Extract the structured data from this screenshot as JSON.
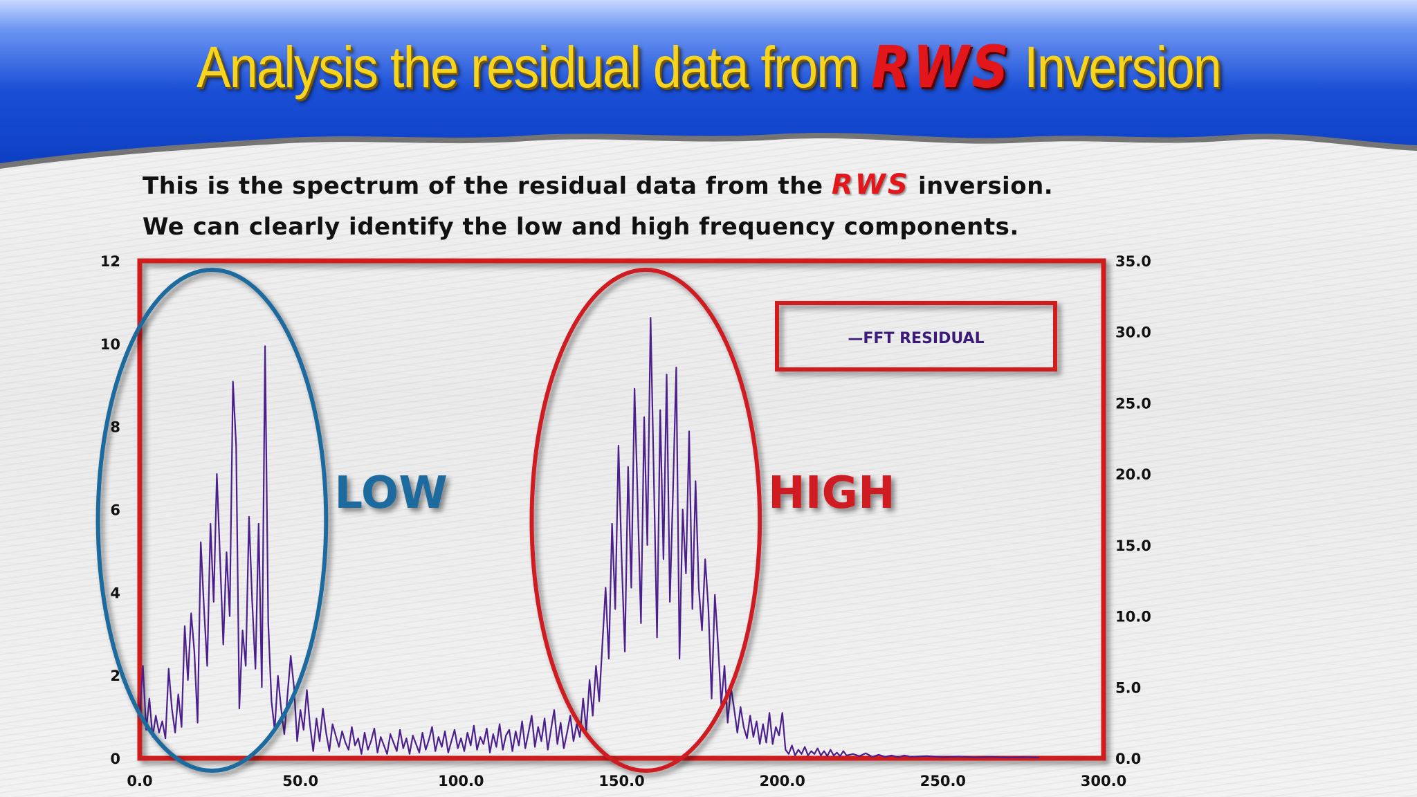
{
  "slide": {
    "title_before": "Analysis the residual data from",
    "title_brand": "RWS",
    "title_after": "Inversion",
    "line1_before": "This is the spectrum of the residual data from the",
    "line1_brand": "RWS",
    "line1_after": "inversion.",
    "line2": "We can clearly identify the low and high frequency components."
  },
  "colors": {
    "banner_blue": "#1a4fd6",
    "title_yellow": "#f7d51f",
    "brand_red": "#e3161b",
    "frame_red": "#d01c1f",
    "series_purple": "#4b1f8c",
    "low_blue": "#1f6a9e",
    "high_red": "#cf1e22"
  },
  "chart_data": {
    "type": "line",
    "legend": [
      "—FFT RESIDUAL"
    ],
    "legend_position": "top-right",
    "grid": false,
    "x_ticks": [
      "0.0",
      "50.0",
      "100.0",
      "150.0",
      "200.0",
      "250.0",
      "300.0"
    ],
    "y_left_ticks": [
      "0",
      "2",
      "4",
      "6",
      "8",
      "10",
      "12"
    ],
    "y_right_ticks": [
      "0.0",
      "5.0",
      "10.0",
      "15.0",
      "20.0",
      "25.0",
      "30.0",
      "35.0"
    ],
    "xlim": [
      0,
      300
    ],
    "ylim": [
      0,
      35
    ],
    "annotations": [
      {
        "text": "LOW",
        "x_range": [
          -13,
          58
        ],
        "color": "#1f6a9e"
      },
      {
        "text": "HIGH",
        "x_range": [
          122,
          193
        ],
        "color": "#cf1e22"
      }
    ],
    "series": [
      {
        "name": "FFT RESIDUAL",
        "points": [
          [
            0,
            3
          ],
          [
            1,
            6.5
          ],
          [
            2,
            2
          ],
          [
            3,
            4.2
          ],
          [
            4,
            1.5
          ],
          [
            5,
            3
          ],
          [
            6,
            1.8
          ],
          [
            7,
            2.6
          ],
          [
            8,
            1.4
          ],
          [
            9,
            6.3
          ],
          [
            10,
            3.5
          ],
          [
            11,
            1.8
          ],
          [
            12,
            4.5
          ],
          [
            13,
            2.2
          ],
          [
            14,
            9.3
          ],
          [
            15,
            5.5
          ],
          [
            16,
            10.2
          ],
          [
            17,
            7.5
          ],
          [
            18,
            2.5
          ],
          [
            19,
            15.2
          ],
          [
            20,
            10.5
          ],
          [
            21,
            6.5
          ],
          [
            22,
            16.5
          ],
          [
            23,
            11
          ],
          [
            24,
            20
          ],
          [
            25,
            14
          ],
          [
            26,
            8
          ],
          [
            27,
            14.5
          ],
          [
            28,
            10
          ],
          [
            29,
            26.5
          ],
          [
            30,
            22
          ],
          [
            31,
            3.5
          ],
          [
            32,
            9
          ],
          [
            33,
            6.5
          ],
          [
            34,
            17
          ],
          [
            35,
            11
          ],
          [
            36,
            6.3
          ],
          [
            37,
            16.5
          ],
          [
            38,
            5
          ],
          [
            39,
            29
          ],
          [
            40,
            9.5
          ],
          [
            41,
            4
          ],
          [
            42,
            2
          ],
          [
            43,
            5.8
          ],
          [
            44,
            3.5
          ],
          [
            45,
            1.7
          ],
          [
            46,
            4.5
          ],
          [
            47,
            7.2
          ],
          [
            48,
            5
          ],
          [
            49,
            1.2
          ],
          [
            50,
            3.4
          ],
          [
            51,
            2
          ],
          [
            52,
            4.8
          ],
          [
            53,
            2.3
          ],
          [
            54,
            0.5
          ],
          [
            55,
            2.8
          ],
          [
            56,
            1.2
          ],
          [
            57,
            3.5
          ],
          [
            58,
            1.8
          ],
          [
            59,
            0.5
          ],
          [
            60,
            2.4
          ],
          [
            61,
            1.6
          ],
          [
            62,
            0.8
          ],
          [
            63,
            1.9
          ],
          [
            64,
            1.1
          ],
          [
            65,
            0.6
          ],
          [
            66,
            2.2
          ],
          [
            67,
            0.9
          ],
          [
            68,
            1.4
          ],
          [
            69,
            0.3
          ],
          [
            70,
            1.8
          ],
          [
            71,
            0.6
          ],
          [
            72,
            1.2
          ],
          [
            73,
            2.1
          ],
          [
            74,
            0.4
          ],
          [
            75,
            1.5
          ],
          [
            76,
            0.9
          ],
          [
            77,
            0.3
          ],
          [
            78,
            1.7
          ],
          [
            79,
            1.1
          ],
          [
            80,
            0.5
          ],
          [
            81,
            2.0
          ],
          [
            82,
            0.7
          ],
          [
            83,
            1.4
          ],
          [
            84,
            0.3
          ],
          [
            85,
            1.6
          ],
          [
            86,
            1.0
          ],
          [
            87,
            0.4
          ],
          [
            88,
            1.8
          ],
          [
            89,
            0.6
          ],
          [
            90,
            1.3
          ],
          [
            91,
            2.2
          ],
          [
            92,
            0.5
          ],
          [
            93,
            1.5
          ],
          [
            94,
            0.8
          ],
          [
            95,
            1.9
          ],
          [
            96,
            0.4
          ],
          [
            97,
            1.2
          ],
          [
            98,
            2.0
          ],
          [
            99,
            0.7
          ],
          [
            100,
            1.4
          ],
          [
            101,
            0.5
          ],
          [
            102,
            1.8
          ],
          [
            103,
            0.9
          ],
          [
            104,
            2.3
          ],
          [
            105,
            0.6
          ],
          [
            106,
            1.5
          ],
          [
            107,
            1.0
          ],
          [
            108,
            2.1
          ],
          [
            109,
            0.4
          ],
          [
            110,
            1.7
          ],
          [
            111,
            0.8
          ],
          [
            112,
            2.4
          ],
          [
            113,
            0.6
          ],
          [
            114,
            1.6
          ],
          [
            115,
            2.0
          ],
          [
            116,
            0.5
          ],
          [
            117,
            1.9
          ],
          [
            118,
            0.9
          ],
          [
            119,
            2.6
          ],
          [
            120,
            0.7
          ],
          [
            121,
            1.8
          ],
          [
            122,
            3.0
          ],
          [
            123,
            0.8
          ],
          [
            124,
            2.2
          ],
          [
            125,
            1.2
          ],
          [
            126,
            2.8
          ],
          [
            127,
            0.6
          ],
          [
            128,
            2.0
          ],
          [
            129,
            3.4
          ],
          [
            130,
            1.0
          ],
          [
            131,
            2.5
          ],
          [
            132,
            0.7
          ],
          [
            133,
            1.8
          ],
          [
            134,
            3.0
          ],
          [
            135,
            1.2
          ],
          [
            136,
            2.4
          ],
          [
            137,
            1.5
          ],
          [
            138,
            4.2
          ],
          [
            139,
            2.0
          ],
          [
            140,
            5.5
          ],
          [
            141,
            3.0
          ],
          [
            142,
            6.5
          ],
          [
            143,
            4.0
          ],
          [
            144,
            8.0
          ],
          [
            145,
            12.0
          ],
          [
            146,
            7.0
          ],
          [
            147,
            16.5
          ],
          [
            148,
            10.5
          ],
          [
            149,
            22
          ],
          [
            150,
            14
          ],
          [
            151,
            7.5
          ],
          [
            152,
            20.5
          ],
          [
            153,
            12
          ],
          [
            154,
            26
          ],
          [
            155,
            18
          ],
          [
            156,
            9.5
          ],
          [
            157,
            24
          ],
          [
            158,
            15
          ],
          [
            159,
            31
          ],
          [
            160,
            20
          ],
          [
            161,
            8.5
          ],
          [
            162,
            24.5
          ],
          [
            163,
            14
          ],
          [
            164,
            27
          ],
          [
            165,
            11
          ],
          [
            166,
            19
          ],
          [
            167,
            27.5
          ],
          [
            168,
            7
          ],
          [
            169,
            17.5
          ],
          [
            170,
            13
          ],
          [
            171,
            23
          ],
          [
            172,
            10.5
          ],
          [
            173,
            19.5
          ],
          [
            174,
            12
          ],
          [
            175,
            9
          ],
          [
            176,
            14
          ],
          [
            177,
            10.5
          ],
          [
            178,
            4.2
          ],
          [
            179,
            11.5
          ],
          [
            180,
            8
          ],
          [
            181,
            3.8
          ],
          [
            182,
            6.5
          ],
          [
            183,
            2.5
          ],
          [
            184,
            5
          ],
          [
            185,
            3.5
          ],
          [
            186,
            1.8
          ],
          [
            187,
            3.6
          ],
          [
            188,
            2.2
          ],
          [
            189,
            1.4
          ],
          [
            190,
            3.0
          ],
          [
            191,
            1.5
          ],
          [
            192,
            2.6
          ],
          [
            193,
            1.0
          ],
          [
            194,
            2.4
          ],
          [
            195,
            1.1
          ],
          [
            196,
            3.2
          ],
          [
            197,
            1.0
          ],
          [
            198,
            2.2
          ],
          [
            199,
            1.6
          ],
          [
            200,
            3.2
          ],
          [
            201,
            0.6
          ],
          [
            202,
            0.3
          ],
          [
            203,
            0.9
          ],
          [
            204,
            0.2
          ],
          [
            205,
            0.6
          ],
          [
            206,
            0.3
          ],
          [
            207,
            0.8
          ],
          [
            208,
            0.2
          ],
          [
            209,
            0.5
          ],
          [
            210,
            0.3
          ],
          [
            211,
            0.7
          ],
          [
            212,
            0.2
          ],
          [
            213,
            0.5
          ],
          [
            214,
            0.15
          ],
          [
            215,
            0.6
          ],
          [
            216,
            0.2
          ],
          [
            217,
            0.4
          ],
          [
            218,
            0.15
          ],
          [
            219,
            0.5
          ],
          [
            220,
            0.2
          ],
          [
            222,
            0.3
          ],
          [
            224,
            0.15
          ],
          [
            226,
            0.35
          ],
          [
            228,
            0.1
          ],
          [
            230,
            0.25
          ],
          [
            232,
            0.1
          ],
          [
            234,
            0.2
          ],
          [
            236,
            0.08
          ],
          [
            238,
            0.2
          ],
          [
            240,
            0.1
          ],
          [
            245,
            0.15
          ],
          [
            250,
            0.08
          ],
          [
            255,
            0.12
          ],
          [
            260,
            0.06
          ],
          [
            265,
            0.1
          ],
          [
            270,
            0.05
          ],
          [
            275,
            0.08
          ],
          [
            280,
            0.05
          ]
        ]
      }
    ]
  }
}
